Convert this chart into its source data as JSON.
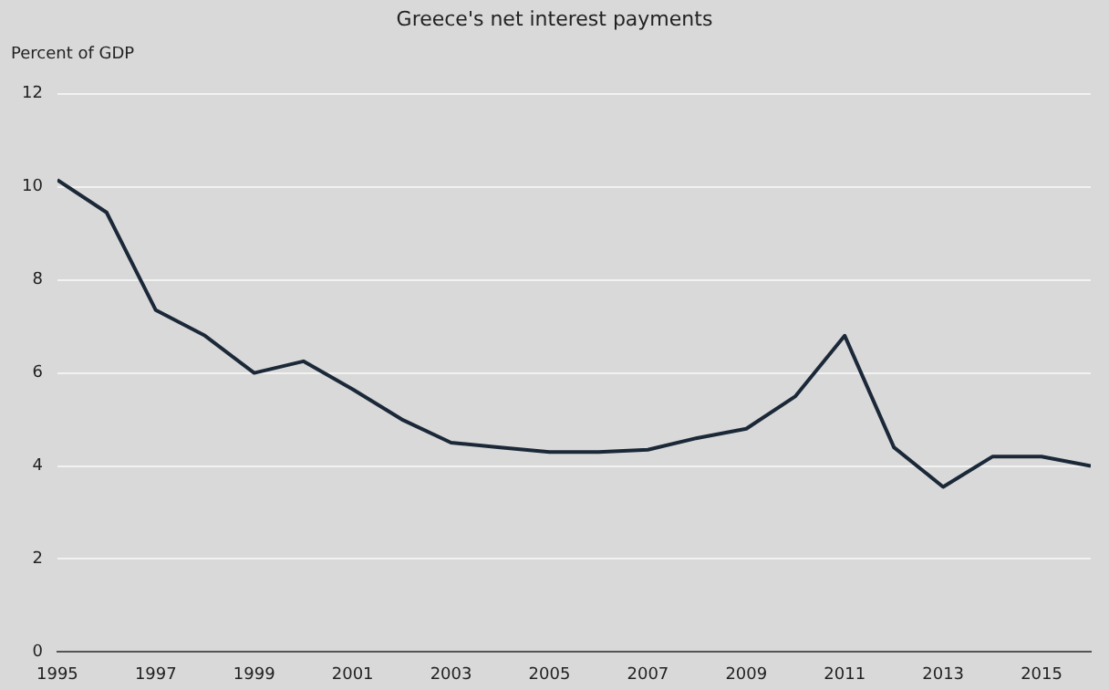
{
  "chart_data": {
    "type": "line",
    "title": "Greece's net interest payments",
    "ylabel": "Percent of GDP",
    "x": [
      1995,
      1996,
      1997,
      1998,
      1999,
      2000,
      2001,
      2002,
      2003,
      2004,
      2005,
      2006,
      2007,
      2008,
      2009,
      2010,
      2011,
      2012,
      2013,
      2014,
      2015,
      2016
    ],
    "series": [
      {
        "color": "#1b2838",
        "values": [
          10.15,
          9.45,
          7.35,
          6.8,
          6.0,
          6.25,
          5.65,
          5.0,
          4.5,
          4.4,
          4.3,
          4.3,
          4.35,
          4.6,
          4.8,
          5.5,
          6.8,
          4.4,
          3.55,
          4.2,
          4.2,
          4.0
        ]
      }
    ],
    "xlim": [
      1995,
      2016
    ],
    "xticks": [
      1995,
      1997,
      1999,
      2001,
      2003,
      2005,
      2007,
      2009,
      2011,
      2013,
      2015
    ],
    "ylim": [
      0,
      12
    ],
    "yticks": [
      0,
      2,
      4,
      6,
      8,
      10,
      12
    ],
    "grid": "y",
    "legend": false,
    "marker": "none",
    "line_style": "solid"
  }
}
